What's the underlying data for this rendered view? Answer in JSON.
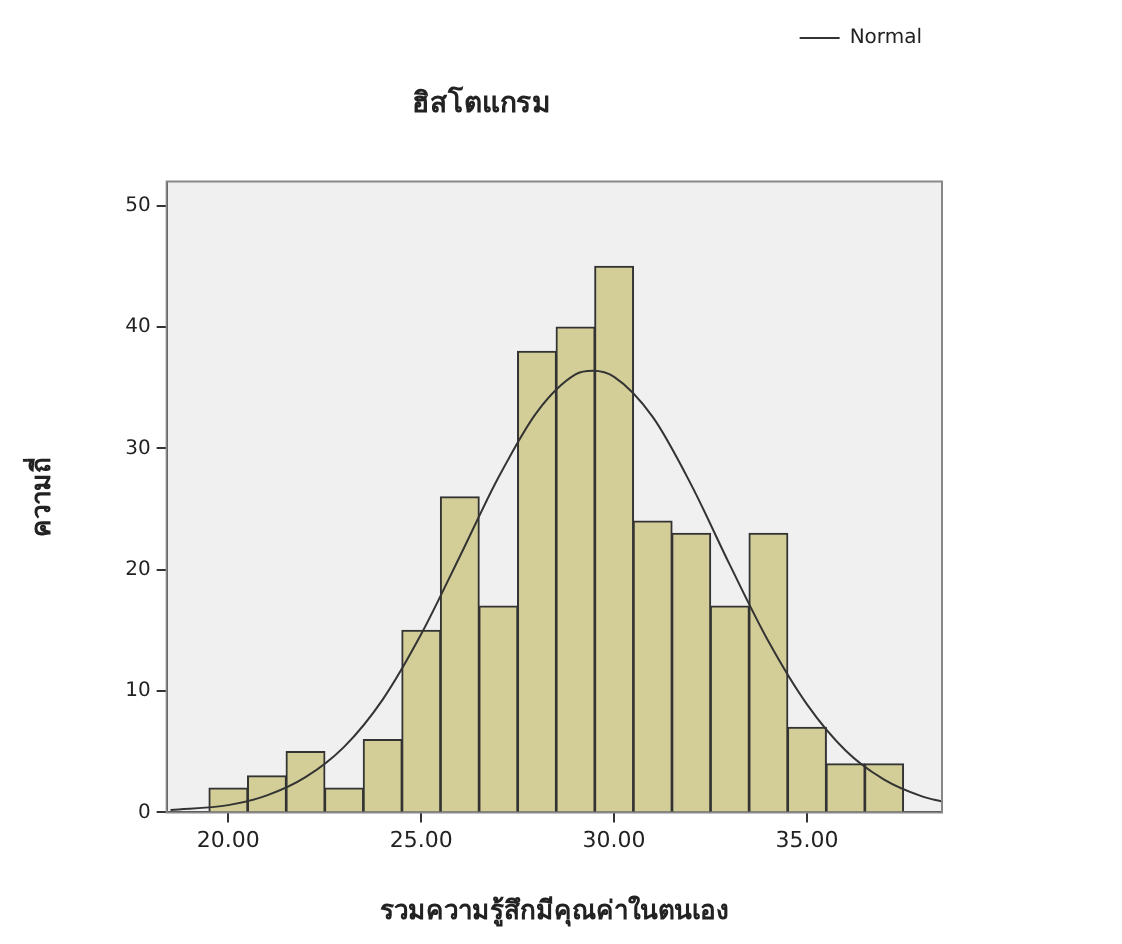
{
  "chart_data": {
    "type": "histogram",
    "title": "ฮิสโตแกรม",
    "xlabel": "รวมความรู้สึกมีคุณค่าในตนเอง",
    "ylabel": "ความถี่",
    "bins": [
      19.5,
      20.5,
      21.5,
      22.5,
      23.5,
      24.5,
      25.5,
      26.5,
      27.5,
      28.5,
      29.5,
      30.5,
      31.5,
      32.5,
      33.5,
      34.5,
      35.5,
      36.5,
      37.5
    ],
    "values": [
      2,
      3,
      5,
      2,
      6,
      15,
      26,
      17,
      38,
      40,
      45,
      24,
      23,
      17,
      23,
      7,
      4,
      4
    ],
    "color": "#d3ce98",
    "series": [
      {
        "type": "line",
        "name": "Normal",
        "color": "#333333",
        "x": [
          18.5,
          20,
          21,
          22,
          23,
          24,
          25,
          26,
          27,
          28,
          29,
          29.45,
          30,
          31,
          32,
          33,
          34,
          35,
          36,
          37,
          38,
          38.5
        ],
        "values": [
          0.2,
          0.6,
          1.4,
          2.9,
          5.4,
          9.3,
          14.7,
          21.1,
          27.6,
          33,
          36.1,
          36.4,
          35.9,
          32.6,
          27,
          20.4,
          14.1,
          8.9,
          5.1,
          2.7,
          1.3,
          0.9
        ]
      }
    ],
    "xlim": [
      18.4,
      38.5
    ],
    "xticks": [
      {
        "value": 20,
        "label": "20.00"
      },
      {
        "value": 25,
        "label": "25.00"
      },
      {
        "value": 30,
        "label": "30.00"
      },
      {
        "value": 35,
        "label": "35.00"
      }
    ],
    "ylim": [
      0,
      52
    ],
    "yticks": [
      0,
      10,
      20,
      30,
      40,
      50
    ],
    "grid": false,
    "legend": "top right",
    "marker": "none",
    "line_style": "solid"
  }
}
